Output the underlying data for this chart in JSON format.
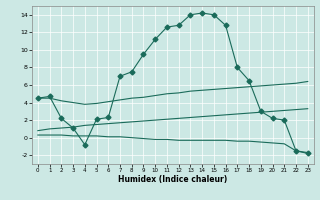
{
  "xlabel": "Humidex (Indice chaleur)",
  "xlim": [
    -0.5,
    23.5
  ],
  "ylim": [
    -3,
    15
  ],
  "yticks": [
    -2,
    0,
    2,
    4,
    6,
    8,
    10,
    12,
    14
  ],
  "xticks": [
    0,
    1,
    2,
    3,
    4,
    5,
    6,
    7,
    8,
    9,
    10,
    11,
    12,
    13,
    14,
    15,
    16,
    17,
    18,
    19,
    20,
    21,
    22,
    23
  ],
  "bg_color": "#cce8e4",
  "line_color": "#1a6b5a",
  "series": [
    {
      "x": [
        0,
        1,
        2,
        3,
        4,
        5,
        6,
        7,
        8,
        9,
        10,
        11,
        12,
        13,
        14,
        15,
        16,
        17,
        18,
        19,
        20,
        21,
        22,
        23
      ],
      "y": [
        4.5,
        4.5,
        4.2,
        4.0,
        3.8,
        3.9,
        4.1,
        4.3,
        4.5,
        4.6,
        4.8,
        5.0,
        5.1,
        5.3,
        5.4,
        5.5,
        5.6,
        5.7,
        5.8,
        5.9,
        6.0,
        6.1,
        6.2,
        6.4
      ],
      "marker": null,
      "markersize": 0
    },
    {
      "x": [
        0,
        1,
        2,
        3,
        4,
        5,
        6,
        7,
        8,
        9,
        10,
        11,
        12,
        13,
        14,
        15,
        16,
        17,
        18,
        19,
        20,
        21,
        22,
        23
      ],
      "y": [
        0.8,
        1.0,
        1.1,
        1.2,
        1.4,
        1.5,
        1.6,
        1.7,
        1.8,
        1.9,
        2.0,
        2.1,
        2.2,
        2.3,
        2.4,
        2.5,
        2.6,
        2.7,
        2.8,
        2.9,
        3.0,
        3.1,
        3.2,
        3.3
      ],
      "marker": null,
      "markersize": 0
    },
    {
      "x": [
        0,
        1,
        2,
        3,
        4,
        5,
        6,
        7,
        8,
        9,
        10,
        11,
        12,
        13,
        14,
        15,
        16,
        17,
        18,
        19,
        20,
        21,
        22,
        23
      ],
      "y": [
        0.3,
        0.3,
        0.3,
        0.2,
        0.2,
        0.2,
        0.1,
        0.1,
        0.0,
        -0.1,
        -0.2,
        -0.2,
        -0.3,
        -0.3,
        -0.3,
        -0.3,
        -0.3,
        -0.4,
        -0.4,
        -0.5,
        -0.6,
        -0.7,
        -1.5,
        -1.7
      ],
      "marker": null,
      "markersize": 0
    },
    {
      "x": [
        0,
        1,
        2,
        3,
        4,
        5,
        6,
        7,
        8,
        9,
        10,
        11,
        12,
        13,
        14,
        15,
        16,
        17,
        18,
        19,
        20,
        21,
        22,
        23
      ],
      "y": [
        4.5,
        4.7,
        2.2,
        1.1,
        -0.8,
        2.1,
        2.3,
        7.0,
        7.5,
        9.5,
        11.2,
        12.6,
        12.8,
        14.0,
        14.2,
        14.0,
        12.8,
        8.0,
        6.5,
        3.0,
        2.2,
        2.0,
        -1.5,
        -1.8
      ],
      "marker": "D",
      "markersize": 2.5
    }
  ]
}
